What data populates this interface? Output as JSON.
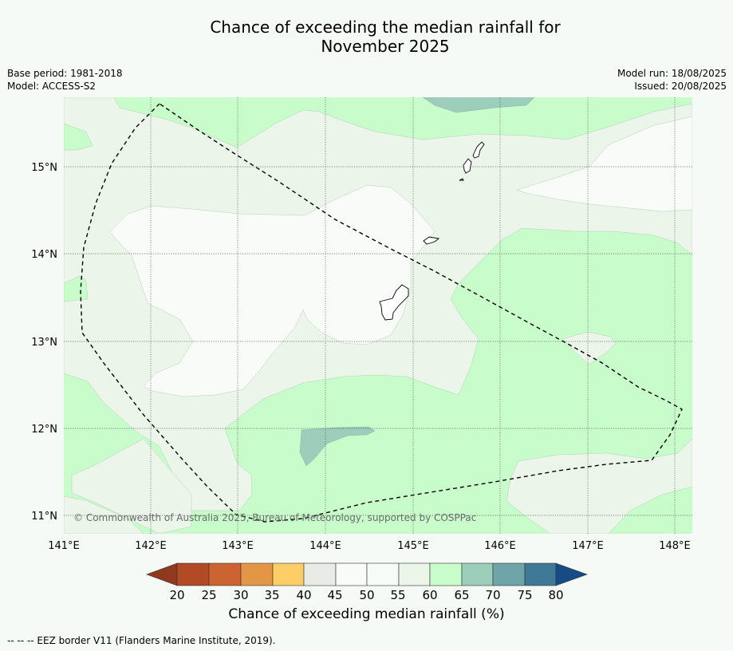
{
  "title_line1": "Chance of exceeding the median rainfall for",
  "title_line2": "November 2025",
  "base_period": "Base period: 1981-2018",
  "model": "Model: ACCESS-S2",
  "model_run": "Model run: 18/08/2025",
  "issued": "Issued: 20/08/2025",
  "copyright": "© Commonwealth of Australia 2025, Bureau of Meteorology, supported by COSPPac",
  "footnote": "-- -- -- EEZ border V11 (Flanders Marine Institute, 2019).",
  "colorbar": {
    "title": "Chance of exceeding median rainfall (%)",
    "ticks": [
      "20",
      "25",
      "30",
      "35",
      "40",
      "45",
      "50",
      "55",
      "60",
      "65",
      "70",
      "75",
      "80"
    ],
    "colors": {
      "below20": "#8f3a1e",
      "b20_25": "#b24a25",
      "b25_30": "#cc6432",
      "b30_35": "#e39646",
      "b35_40": "#fdce66",
      "b40_45": "#e8ebe6",
      "b45_50": "#f8fbf8",
      "b50_55": "#f7fbf7",
      "b55_60": "#ebf5ea",
      "b60_65": "#c9fccb",
      "b65_70": "#9dcdbb",
      "b70_75": "#6fa5a8",
      "b75_80": "#3f7996",
      "above80": "#164b85"
    }
  },
  "axes": {
    "lon_labels": [
      "141°E",
      "142°E",
      "143°E",
      "144°E",
      "145°E",
      "146°E",
      "147°E",
      "148°E"
    ],
    "lat_labels": [
      "15°N",
      "14°N",
      "13°N",
      "12°N",
      "11°N"
    ],
    "lon_range": [
      141.0,
      148.2
    ],
    "lat_range": [
      10.8,
      15.8
    ],
    "gridlines": true
  }
}
